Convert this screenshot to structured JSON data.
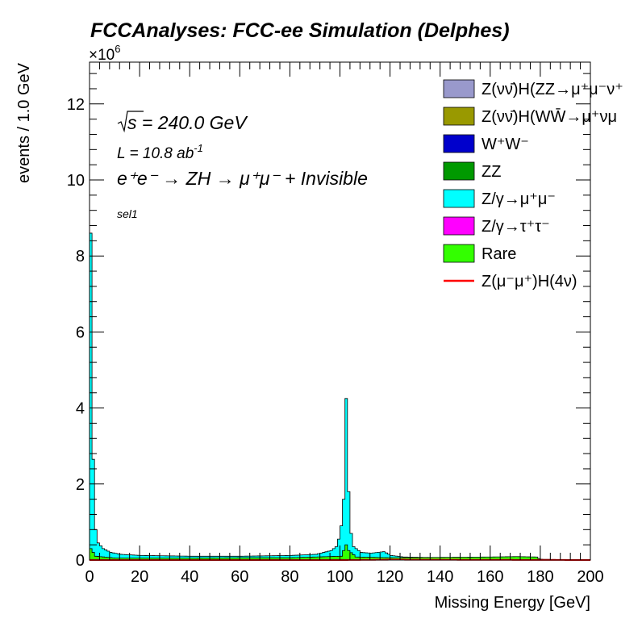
{
  "chart_data": {
    "type": "histogram-stacked",
    "title": "FCCAnalyses: FCC-ee Simulation (Delphes)",
    "xlabel": "Missing Energy [GeV]",
    "ylabel": "events / 1.0 GeV",
    "y_exponent_label": "×10",
    "y_exponent_power": "6",
    "xlim": [
      0,
      200
    ],
    "ylim": [
      0,
      13.1
    ],
    "y_scale_factor": 1000000,
    "x_ticks": [
      "0",
      "20",
      "40",
      "60",
      "80",
      "100",
      "120",
      "140",
      "160",
      "180",
      "200"
    ],
    "y_ticks": [
      "0",
      "2",
      "4",
      "6",
      "8",
      "10",
      "12"
    ],
    "annotations": {
      "sqrt_s_symbol": "√s",
      "sqrt_s_value": " = 240.0 GeV",
      "lumi": "L = 10.8 ab",
      "lumi_power": "-1",
      "process": "e⁺e⁻ → ZH → μ⁺μ⁻ + Invisible",
      "selection": "sel1"
    },
    "legend_position": "top-right",
    "legend": [
      {
        "label": "Z(νν̄)H(ZZ→μ⁺μ⁻ν⁺",
        "color": "#9999cc",
        "kind": "box"
      },
      {
        "label": "Z(νν̄)H(WW̄→μ⁺νμ",
        "color": "#999900",
        "kind": "box"
      },
      {
        "label": "W⁺W⁻",
        "color": "#0000cc",
        "kind": "box"
      },
      {
        "label": "ZZ",
        "color": "#009900",
        "kind": "box"
      },
      {
        "label": "Z/γ→μ⁺μ⁻",
        "color": "#00ffff",
        "kind": "box"
      },
      {
        "label": "Z/γ→τ⁺τ⁻",
        "color": "#ff00ff",
        "kind": "box"
      },
      {
        "label": "Rare",
        "color": "#33ff00",
        "kind": "box"
      },
      {
        "label": "Z(μ⁻μ⁺)H(4ν)",
        "color": "#ff0000",
        "kind": "line"
      }
    ],
    "series": [
      {
        "name": "Z/γ→μ⁺μ⁻",
        "color": "#00ffff",
        "points": [
          [
            0,
            8.6
          ],
          [
            1,
            2.65
          ],
          [
            2,
            0.8
          ],
          [
            3,
            0.45
          ],
          [
            5,
            0.3
          ],
          [
            8,
            0.2
          ],
          [
            12,
            0.15
          ],
          [
            20,
            0.12
          ],
          [
            40,
            0.1
          ],
          [
            60,
            0.1
          ],
          [
            80,
            0.12
          ],
          [
            90,
            0.15
          ],
          [
            96,
            0.25
          ],
          [
            98,
            0.35
          ],
          [
            99,
            0.55
          ],
          [
            100,
            0.9
          ],
          [
            101,
            1.6
          ],
          [
            102,
            4.25
          ],
          [
            103,
            1.8
          ],
          [
            104,
            0.7
          ],
          [
            105,
            0.35
          ],
          [
            108,
            0.2
          ],
          [
            112,
            0.18
          ],
          [
            117,
            0.22
          ],
          [
            120,
            0.12
          ],
          [
            125,
            0.08
          ],
          [
            140,
            0.06
          ],
          [
            160,
            0.05
          ],
          [
            180,
            0.02
          ],
          [
            200,
            0.0
          ]
        ]
      },
      {
        "name": "Rare",
        "color": "#33ff00",
        "points": [
          [
            0,
            0.3
          ],
          [
            2,
            0.1
          ],
          [
            10,
            0.05
          ],
          [
            40,
            0.05
          ],
          [
            60,
            0.06
          ],
          [
            80,
            0.06
          ],
          [
            100,
            0.1
          ],
          [
            102,
            0.4
          ],
          [
            103,
            0.25
          ],
          [
            106,
            0.08
          ],
          [
            120,
            0.06
          ],
          [
            140,
            0.07
          ],
          [
            160,
            0.08
          ],
          [
            170,
            0.09
          ],
          [
            178,
            0.08
          ],
          [
            180,
            0.0
          ],
          [
            200,
            0.0
          ]
        ]
      },
      {
        "name": "Z(μ⁻μ⁺)H(4ν)",
        "color": "#ff0000",
        "points": [
          [
            0,
            0.0
          ],
          [
            100,
            0.0
          ],
          [
            120,
            0.01
          ],
          [
            200,
            0.0
          ]
        ]
      }
    ]
  }
}
